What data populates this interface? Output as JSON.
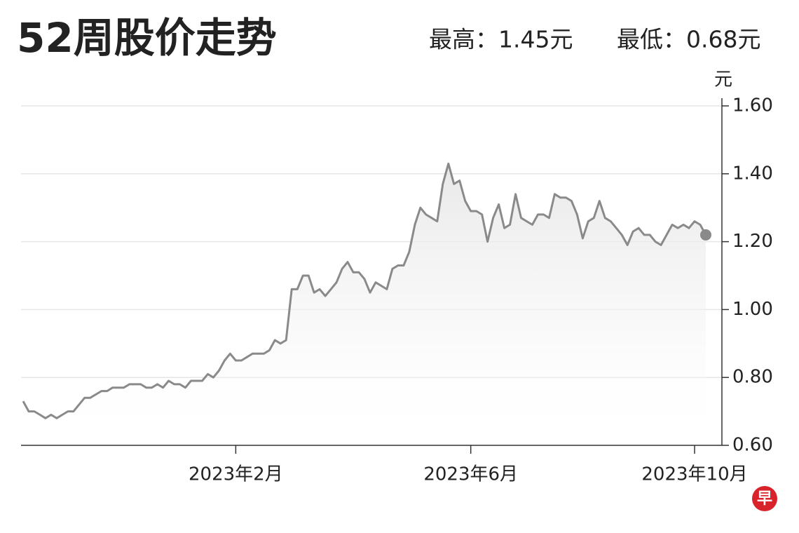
{
  "chart_data": {
    "type": "line",
    "title": "52周股价走势",
    "high_label": "最高：1.45元",
    "low_label": "最低：0.68元",
    "y_unit": "元",
    "logo": "早",
    "categories": [
      null,
      null,
      null,
      null,
      null,
      null,
      null,
      null,
      null,
      null,
      null,
      null,
      null,
      null,
      null,
      null,
      null,
      null,
      null,
      null,
      null,
      null,
      null,
      null,
      null,
      null,
      null,
      null,
      null,
      null,
      null,
      null,
      null,
      null,
      null,
      null,
      null,
      null,
      "2023年2月",
      null,
      null,
      null,
      null,
      null,
      null,
      null,
      null,
      null,
      null,
      null,
      null,
      null,
      null,
      null,
      null,
      null,
      null,
      null,
      null,
      null,
      null,
      null,
      null,
      null,
      null,
      null,
      null,
      null,
      null,
      null,
      null,
      null,
      null,
      null,
      null,
      null,
      null,
      null,
      null,
      null,
      "2023年6月",
      null,
      null,
      null,
      null,
      null,
      null,
      null,
      null,
      null,
      null,
      null,
      null,
      null,
      null,
      null,
      null,
      null,
      null,
      null,
      null,
      null,
      null,
      null,
      null,
      null,
      null,
      null,
      null,
      null,
      null,
      null,
      null,
      null,
      null,
      null,
      null,
      null,
      null,
      null,
      "2023年10月",
      null,
      null
    ],
    "series": [
      {
        "color": "#8a8a8a",
        "values": [
          0.73,
          0.7,
          0.7,
          0.69,
          0.68,
          0.69,
          0.68,
          0.69,
          0.7,
          0.7,
          0.72,
          0.74,
          0.74,
          0.75,
          0.76,
          0.76,
          0.77,
          0.77,
          0.77,
          0.78,
          0.78,
          0.78,
          0.77,
          0.77,
          0.78,
          0.77,
          0.79,
          0.78,
          0.78,
          0.77,
          0.79,
          0.79,
          0.79,
          0.81,
          0.8,
          0.82,
          0.85,
          0.87,
          0.85,
          0.85,
          0.86,
          0.87,
          0.87,
          0.87,
          0.88,
          0.91,
          0.9,
          0.91,
          1.06,
          1.06,
          1.1,
          1.1,
          1.05,
          1.06,
          1.04,
          1.06,
          1.08,
          1.12,
          1.14,
          1.11,
          1.11,
          1.09,
          1.05,
          1.08,
          1.07,
          1.06,
          1.12,
          1.13,
          1.13,
          1.17,
          1.25,
          1.3,
          1.28,
          1.27,
          1.26,
          1.37,
          1.43,
          1.37,
          1.38,
          1.32,
          1.29,
          1.29,
          1.28,
          1.2,
          1.27,
          1.31,
          1.24,
          1.25,
          1.34,
          1.27,
          1.26,
          1.25,
          1.28,
          1.28,
          1.27,
          1.34,
          1.33,
          1.33,
          1.32,
          1.28,
          1.21,
          1.26,
          1.27,
          1.32,
          1.27,
          1.26,
          1.24,
          1.22,
          1.19,
          1.23,
          1.24,
          1.22,
          1.22,
          1.2,
          1.19,
          1.22,
          1.25,
          1.24,
          1.25,
          1.24,
          1.26,
          1.25,
          1.22
        ]
      }
    ],
    "ylim": [
      0.6,
      1.65
    ],
    "yticks": [
      {
        "value": 0.6,
        "label": "0.60"
      },
      {
        "value": 0.8,
        "label": "0.80"
      },
      {
        "value": 1.0,
        "label": "1.00"
      },
      {
        "value": 1.2,
        "label": "1.20"
      },
      {
        "value": 1.4,
        "label": "1.40"
      },
      {
        "value": 1.6,
        "label": "1.60"
      }
    ],
    "grid": true
  }
}
